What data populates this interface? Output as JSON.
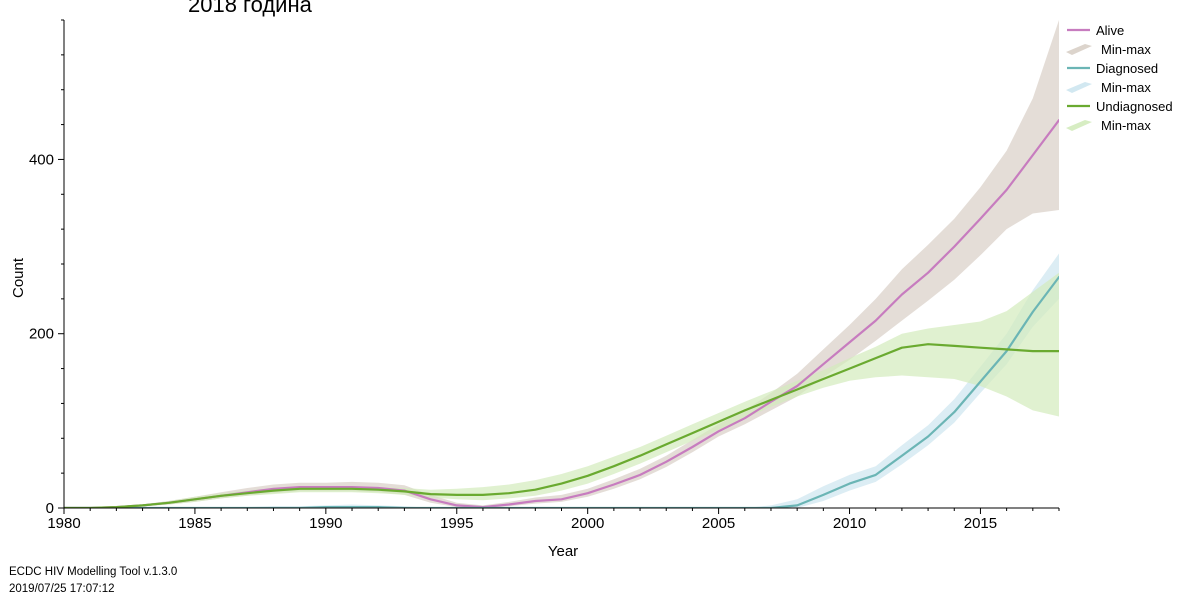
{
  "footer": {
    "tool": "ECDC HIV Modelling Tool v.1.3.0",
    "timestamp": "2019/07/25 17:07:12"
  },
  "chart_data": {
    "type": "line",
    "title": "2018 година",
    "xlabel": "Year",
    "ylabel": "Count",
    "xlim": [
      1980,
      2018
    ],
    "ylim": [
      0,
      560
    ],
    "x_ticks": [
      1980,
      1985,
      1990,
      1995,
      2000,
      2005,
      2010,
      2015
    ],
    "y_ticks": [
      0,
      200,
      400
    ],
    "legend_position": "top-right",
    "x": [
      1980,
      1981,
      1982,
      1983,
      1984,
      1985,
      1986,
      1987,
      1988,
      1989,
      1990,
      1991,
      1992,
      1993,
      1994,
      1995,
      1996,
      1997,
      1998,
      1999,
      2000,
      2001,
      2002,
      2003,
      2004,
      2005,
      2006,
      2007,
      2008,
      2009,
      2010,
      2011,
      2012,
      2013,
      2014,
      2015,
      2016,
      2017,
      2018
    ],
    "series": [
      {
        "name": "Alive",
        "band_label": "Min-max",
        "color": "#c77cbf",
        "band_color": "#d8cfc6",
        "values": [
          0,
          0,
          1,
          3,
          6,
          10,
          14,
          18,
          22,
          24,
          24,
          24,
          23,
          20,
          10,
          3,
          1,
          4,
          8,
          10,
          17,
          27,
          38,
          53,
          70,
          88,
          103,
          122,
          140,
          165,
          190,
          215,
          245,
          270,
          300,
          332,
          365,
          405,
          445
        ],
        "min": [
          0,
          0,
          0,
          2,
          4,
          7,
          11,
          14,
          17,
          19,
          19,
          19,
          18,
          15,
          6,
          1,
          0,
          2,
          5,
          7,
          13,
          22,
          33,
          47,
          64,
          82,
          96,
          112,
          128,
          150,
          170,
          192,
          215,
          238,
          262,
          290,
          320,
          338,
          342
        ],
        "max": [
          0,
          0,
          1,
          4,
          8,
          13,
          18,
          23,
          27,
          29,
          29,
          30,
          29,
          26,
          15,
          6,
          3,
          7,
          12,
          15,
          22,
          33,
          45,
          60,
          78,
          96,
          112,
          132,
          154,
          182,
          210,
          240,
          274,
          302,
          332,
          368,
          410,
          470,
          560
        ]
      },
      {
        "name": "Diagnosed",
        "band_label": "Min-max",
        "color": "#6bb5b5",
        "band_color": "#cde6ef",
        "values": [
          0,
          0,
          0,
          0,
          0,
          0,
          0,
          0,
          0,
          0,
          1,
          1,
          1,
          0,
          0,
          0,
          0,
          0,
          0,
          0,
          0,
          0,
          0,
          0,
          0,
          0,
          0,
          0,
          3,
          15,
          28,
          38,
          60,
          82,
          110,
          145,
          180,
          225,
          265
        ],
        "min": [
          0,
          0,
          0,
          0,
          0,
          0,
          0,
          0,
          0,
          0,
          0,
          0,
          0,
          0,
          0,
          0,
          0,
          0,
          0,
          0,
          0,
          0,
          0,
          0,
          0,
          0,
          0,
          0,
          0,
          8,
          20,
          30,
          50,
          72,
          98,
          132,
          165,
          208,
          240
        ],
        "max": [
          0,
          0,
          0,
          0,
          0,
          0,
          1,
          1,
          2,
          2,
          3,
          4,
          3,
          2,
          0,
          0,
          0,
          0,
          0,
          0,
          0,
          0,
          0,
          0,
          0,
          0,
          0,
          3,
          10,
          25,
          38,
          48,
          72,
          95,
          125,
          162,
          200,
          250,
          292
        ]
      },
      {
        "name": "Undiagnosed",
        "band_label": "Min-max",
        "color": "#6aaa30",
        "band_color": "#d3ebbc",
        "values": [
          0,
          0,
          1,
          3,
          6,
          10,
          14,
          17,
          20,
          22,
          22,
          22,
          21,
          19,
          16,
          15,
          15,
          17,
          21,
          28,
          37,
          48,
          60,
          73,
          86,
          99,
          112,
          124,
          136,
          148,
          160,
          172,
          184,
          188,
          186,
          184,
          182,
          180,
          180
        ],
        "min": [
          0,
          0,
          0,
          2,
          4,
          7,
          11,
          14,
          16,
          18,
          18,
          18,
          17,
          15,
          12,
          10,
          9,
          11,
          14,
          20,
          28,
          39,
          51,
          64,
          77,
          90,
          103,
          116,
          128,
          138,
          146,
          150,
          152,
          150,
          148,
          140,
          128,
          112,
          105
        ],
        "max": [
          0,
          0,
          1,
          4,
          8,
          13,
          17,
          20,
          23,
          25,
          25,
          25,
          24,
          23,
          21,
          22,
          24,
          27,
          32,
          39,
          48,
          59,
          70,
          83,
          96,
          109,
          122,
          134,
          146,
          158,
          172,
          185,
          200,
          206,
          210,
          214,
          226,
          248,
          270
        ]
      }
    ]
  }
}
